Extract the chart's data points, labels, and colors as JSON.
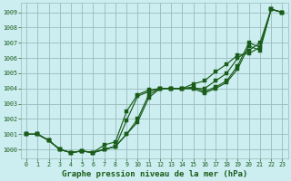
{
  "title": "Graphe pression niveau de la mer (hPa)",
  "bg_color": "#cceef0",
  "grid_color": "#99bbbb",
  "line_color": "#1a5c1a",
  "xlim": [
    -0.5,
    23.5
  ],
  "ylim": [
    999.4,
    1009.6
  ],
  "yticks": [
    1000,
    1001,
    1002,
    1003,
    1004,
    1005,
    1006,
    1007,
    1008,
    1009
  ],
  "xticks": [
    0,
    1,
    2,
    3,
    4,
    5,
    6,
    7,
    8,
    9,
    10,
    11,
    12,
    13,
    14,
    15,
    16,
    17,
    18,
    19,
    20,
    21,
    22,
    23
  ],
  "series": [
    [
      1001.0,
      1001.0,
      1000.6,
      1000.0,
      999.8,
      999.9,
      999.8,
      1000.0,
      1000.2,
      1001.9,
      1003.5,
      1003.8,
      1004.0,
      1004.0,
      1004.0,
      1004.1,
      1003.8,
      1004.1,
      1004.5,
      1005.5,
      1007.0,
      1006.7,
      1009.2,
      1009.0
    ],
    [
      1001.0,
      1001.0,
      1000.6,
      1000.0,
      999.8,
      999.9,
      999.8,
      1000.3,
      1000.5,
      1002.5,
      1003.6,
      1003.9,
      1004.0,
      1004.0,
      1004.0,
      1004.3,
      1004.5,
      1005.1,
      1005.6,
      1006.2,
      1006.3,
      1006.7,
      1009.2,
      1009.0
    ],
    [
      1001.0,
      1001.0,
      1000.6,
      1000.0,
      999.8,
      999.9,
      999.8,
      1000.0,
      1000.2,
      1001.0,
      1002.0,
      1003.6,
      1004.0,
      1004.0,
      1004.0,
      1004.0,
      1004.0,
      1004.5,
      1005.0,
      1006.0,
      1006.5,
      1007.0,
      1009.2,
      1009.0
    ],
    [
      1001.0,
      1001.0,
      1000.6,
      1000.0,
      999.8,
      999.9,
      999.8,
      1000.0,
      1000.2,
      1001.0,
      1001.8,
      1003.4,
      1004.0,
      1004.0,
      1004.0,
      1004.0,
      1003.7,
      1004.0,
      1004.4,
      1005.3,
      1006.8,
      1006.5,
      1009.2,
      1009.0
    ]
  ],
  "ylabel_fontsize": 5.5,
  "xlabel_fontsize": 6.5,
  "tick_fontsize": 4.8,
  "marker_size": 2.2,
  "linewidth": 0.85
}
